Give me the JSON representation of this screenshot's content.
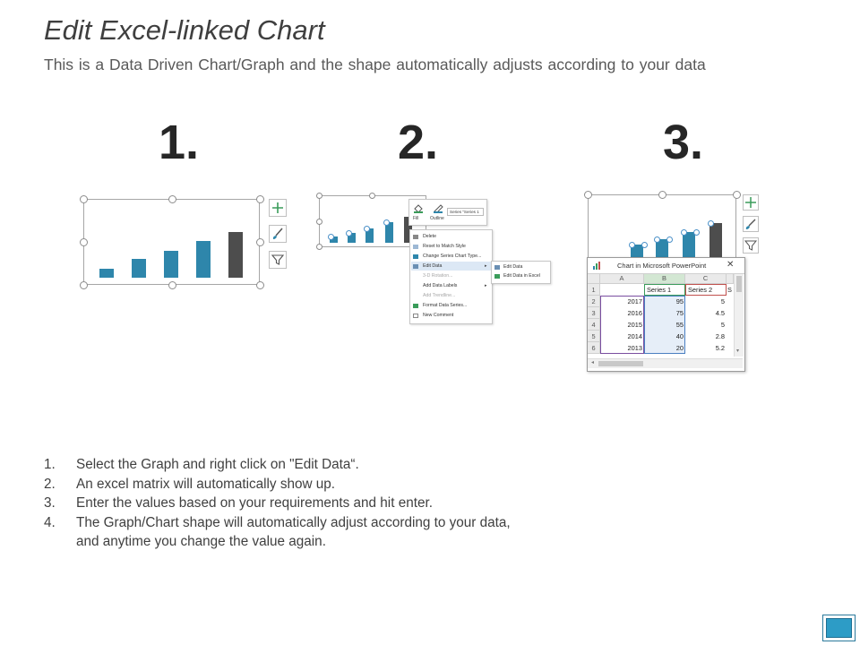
{
  "slide": {
    "title": "Edit Excel-linked Chart",
    "subtitle": "This is a Data Driven Chart/Graph and the shape automatically adjusts according to your data"
  },
  "step_numbers": [
    "1.",
    "2.",
    "3."
  ],
  "colors": {
    "bar_blue": "#2e86ab",
    "bar_dark": "#4d4d4d",
    "accent": "#2d9cc6"
  },
  "panel1": {
    "tools": [
      "plus-icon",
      "brush-icon",
      "filter-icon"
    ]
  },
  "panel2": {
    "format_toolbar": {
      "fill_label": "Fill",
      "outline_label": "Outline",
      "series_select": "Series \"Series 1"
    },
    "context_menu": [
      {
        "label": "Delete",
        "disabled": false
      },
      {
        "label": "Reset to Match Style",
        "disabled": false
      },
      {
        "label": "Change Series Chart Type...",
        "disabled": false
      },
      {
        "label": "Edit Data",
        "disabled": false,
        "submenu": true
      },
      {
        "label": "3-D Rotation...",
        "disabled": true
      },
      {
        "label": "Add Data Labels",
        "disabled": false,
        "submenu": true
      },
      {
        "label": "Add Trendline...",
        "disabled": true
      },
      {
        "label": "Format Data Series...",
        "disabled": false
      },
      {
        "label": "New Comment",
        "disabled": false
      }
    ],
    "submenu": [
      "Edit Data",
      "Edit Data in Excel"
    ]
  },
  "panel3": {
    "excel": {
      "window_title": "Chart in Microsoft PowerPoint",
      "columns": [
        "A",
        "B",
        "C"
      ],
      "rows": [
        "1",
        "2",
        "3",
        "4",
        "5",
        "6"
      ],
      "header_row": [
        "",
        "Series 1",
        "Series 2",
        "S"
      ],
      "data": [
        [
          "2017",
          "95",
          "5"
        ],
        [
          "2016",
          "75",
          "4.5"
        ],
        [
          "2015",
          "55",
          "5"
        ],
        [
          "2014",
          "40",
          "2.8"
        ],
        [
          "2013",
          "20",
          "5.2"
        ]
      ]
    }
  },
  "instructions": [
    {
      "index": "1.",
      "text": "Select the Graph and right click on \"Edit Data“."
    },
    {
      "index": "2.",
      "text": "An excel matrix will automatically show up."
    },
    {
      "index": "3.",
      "text": "Enter the values based on your requirements and hit enter."
    },
    {
      "index": "4.",
      "text": "The Graph/Chart shape will automatically adjust according to your data,"
    },
    {
      "index": "",
      "text": "and anytime you change the value again."
    }
  ]
}
